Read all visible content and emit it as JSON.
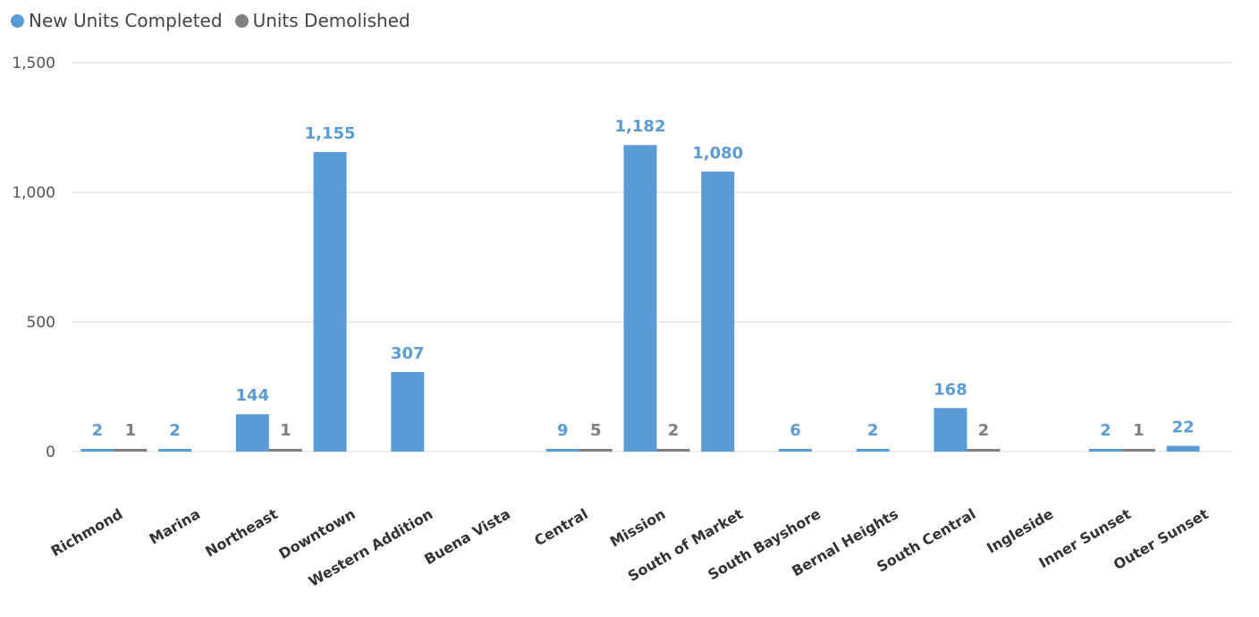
{
  "chart_data": {
    "type": "bar",
    "title": "",
    "xlabel": "",
    "ylabel": "",
    "ylim": [
      0,
      1500
    ],
    "yticks": [
      0,
      500,
      1000,
      1500
    ],
    "ytick_labels": [
      "0",
      "500",
      "1,000",
      "1,500"
    ],
    "grid": true,
    "legend_position": "top-left",
    "categories": [
      "Richmond",
      "Marina",
      "Northeast",
      "Downtown",
      "Western Addition",
      "Buena Vista",
      "Central",
      "Mission",
      "South of Market",
      "South Bayshore",
      "Bernal Heights",
      "South Central",
      "Ingleside",
      "Inner Sunset",
      "Outer Sunset"
    ],
    "series": [
      {
        "name": "New Units Completed",
        "color": "#5b9bd5",
        "values": [
          2,
          2,
          144,
          1155,
          307,
          null,
          9,
          1182,
          1080,
          6,
          2,
          168,
          null,
          2,
          22
        ],
        "labels": [
          "2",
          "2",
          "144",
          "1,155",
          "307",
          "",
          "9",
          "1,182",
          "1,080",
          "6",
          "2",
          "168",
          "",
          "2",
          "22"
        ]
      },
      {
        "name": "Units Demolished",
        "color": "#808080",
        "values": [
          1,
          null,
          1,
          null,
          null,
          null,
          5,
          2,
          null,
          null,
          null,
          2,
          null,
          1,
          null
        ],
        "labels": [
          "1",
          "",
          "1",
          "",
          "",
          "",
          "5",
          "2",
          "",
          "",
          "",
          "2",
          "",
          "1",
          ""
        ]
      }
    ]
  }
}
